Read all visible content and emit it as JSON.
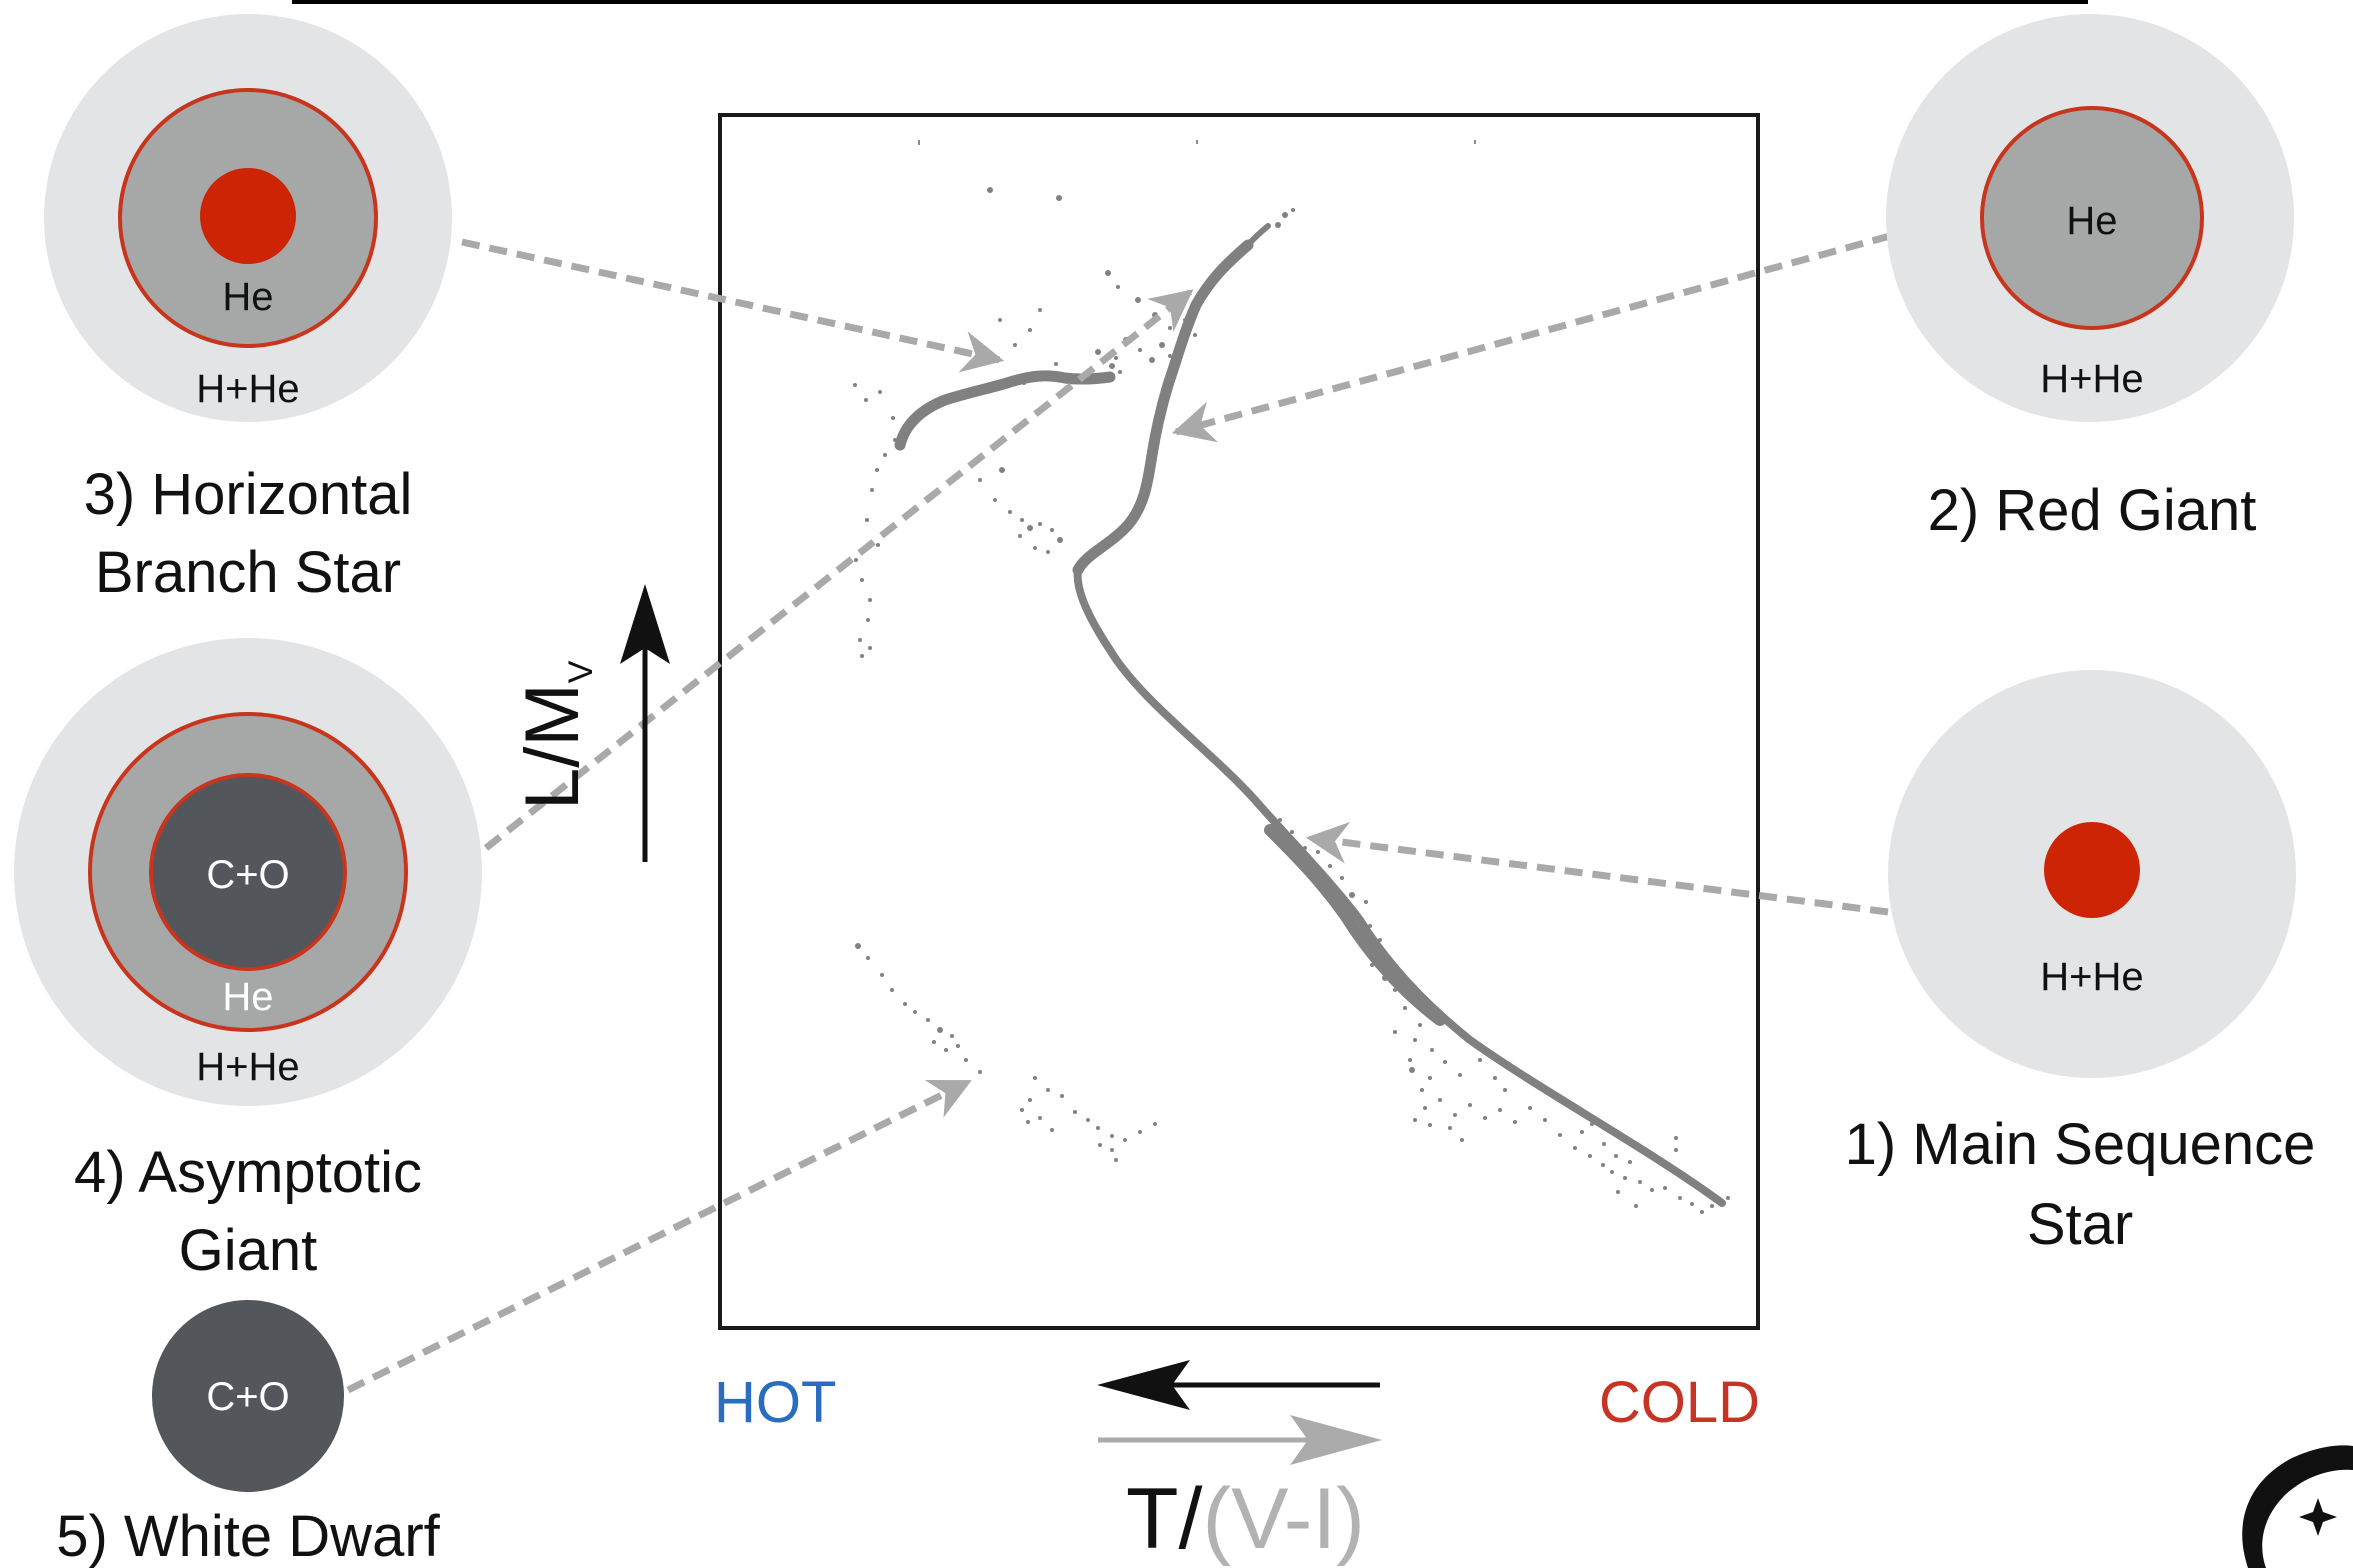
{
  "diagram": {
    "stars": [
      {
        "id": "main-sequence",
        "label_lines": [
          "1) Main Sequence",
          "Star"
        ],
        "layers": [
          "H+He"
        ]
      },
      {
        "id": "red-giant",
        "label_lines": [
          "2) Red Giant"
        ],
        "layers": [
          "He",
          "H+He"
        ]
      },
      {
        "id": "horizontal-branch",
        "label_lines": [
          "3) Horizontal",
          "Branch Star"
        ],
        "layers": [
          "He",
          "H+He"
        ]
      },
      {
        "id": "asymptotic-giant",
        "label_lines": [
          "4) Asymptotic",
          "Giant"
        ],
        "layers": [
          "C+O",
          "He",
          "H+He"
        ]
      },
      {
        "id": "white-dwarf",
        "label_lines": [
          "5) White Dwarf"
        ],
        "layers": [
          "C+O"
        ]
      }
    ],
    "axes": {
      "y_label": "L/M",
      "y_label_sub": "V",
      "x_label_dark": "T/",
      "x_label_light": "(V-I)",
      "hot_label": "HOT",
      "cold_label": "COLD"
    },
    "colors": {
      "outer_envelope": "#e3e4e6",
      "helium_shell": "#a6a8a7",
      "core_red": "#cc2405",
      "ring_red": "#c8341c",
      "co_core": "#53565b",
      "track_gray": "#818181",
      "dash_gray": "#a9a9a9",
      "hot_blue": "#2a6cc0",
      "cold_red": "#c63426"
    }
  }
}
